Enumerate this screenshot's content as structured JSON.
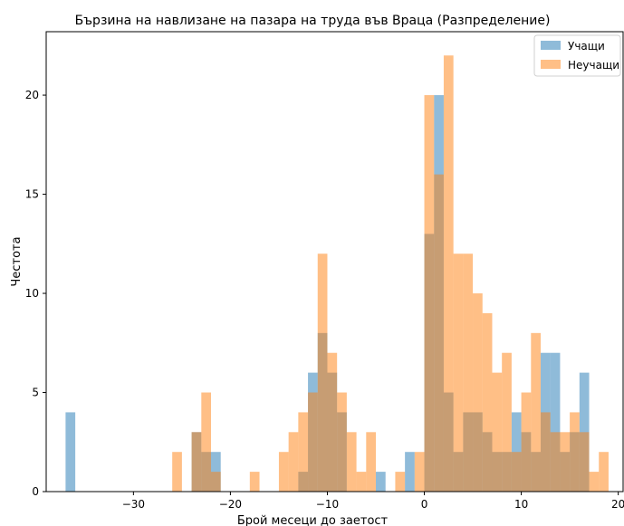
{
  "chart_data": {
    "type": "bar",
    "title": "Бързина на навлизане на пазара на труда във Враца (Разпределение)",
    "xlabel": "Брой месеци до заетост",
    "ylabel": "Честота",
    "xlim": [
      -39,
      20.5
    ],
    "ylim": [
      0,
      23.2
    ],
    "x_ticks": [
      -30,
      -20,
      -10,
      0,
      10,
      20
    ],
    "x_tick_labels": [
      "−30",
      "−20",
      "−10",
      "0",
      "10",
      "20"
    ],
    "y_ticks": [
      0,
      5,
      10,
      15,
      20
    ],
    "y_tick_labels": [
      "0",
      "5",
      "10",
      "15",
      "20"
    ],
    "bin_width": 1,
    "legend_position": "top-right",
    "grid": false,
    "series": [
      {
        "name": "Учащи",
        "color": "#1f77b4",
        "opacity": 0.5,
        "bins": [
          [
            -37,
            4
          ],
          [
            -24,
            3
          ],
          [
            -23,
            2
          ],
          [
            -22,
            2
          ],
          [
            -13,
            1
          ],
          [
            -12,
            6
          ],
          [
            -11,
            8
          ],
          [
            -10,
            6
          ],
          [
            -9,
            4
          ],
          [
            -5,
            1
          ],
          [
            -2,
            2
          ],
          [
            0,
            13
          ],
          [
            1,
            20
          ],
          [
            2,
            5
          ],
          [
            3,
            2
          ],
          [
            4,
            4
          ],
          [
            5,
            4
          ],
          [
            6,
            3
          ],
          [
            7,
            2
          ],
          [
            8,
            2
          ],
          [
            9,
            4
          ],
          [
            10,
            3
          ],
          [
            11,
            2
          ],
          [
            12,
            7
          ],
          [
            13,
            7
          ],
          [
            14,
            2
          ],
          [
            15,
            3
          ],
          [
            16,
            6
          ]
        ]
      },
      {
        "name": "Неучащи",
        "color": "#ff7f0e",
        "opacity": 0.5,
        "bins": [
          [
            -26,
            2
          ],
          [
            -24,
            3
          ],
          [
            -23,
            5
          ],
          [
            -22,
            1
          ],
          [
            -18,
            1
          ],
          [
            -15,
            2
          ],
          [
            -14,
            3
          ],
          [
            -13,
            4
          ],
          [
            -12,
            5
          ],
          [
            -11,
            12
          ],
          [
            -10,
            7
          ],
          [
            -9,
            5
          ],
          [
            -8,
            3
          ],
          [
            -7,
            1
          ],
          [
            -6,
            3
          ],
          [
            -3,
            1
          ],
          [
            -1,
            2
          ],
          [
            0,
            20
          ],
          [
            1,
            16
          ],
          [
            2,
            22
          ],
          [
            3,
            12
          ],
          [
            4,
            12
          ],
          [
            5,
            10
          ],
          [
            6,
            9
          ],
          [
            7,
            6
          ],
          [
            8,
            7
          ],
          [
            9,
            2
          ],
          [
            10,
            5
          ],
          [
            11,
            8
          ],
          [
            12,
            4
          ],
          [
            13,
            3
          ],
          [
            14,
            3
          ],
          [
            15,
            4
          ],
          [
            16,
            3
          ],
          [
            17,
            1
          ],
          [
            18,
            2
          ]
        ]
      }
    ]
  }
}
